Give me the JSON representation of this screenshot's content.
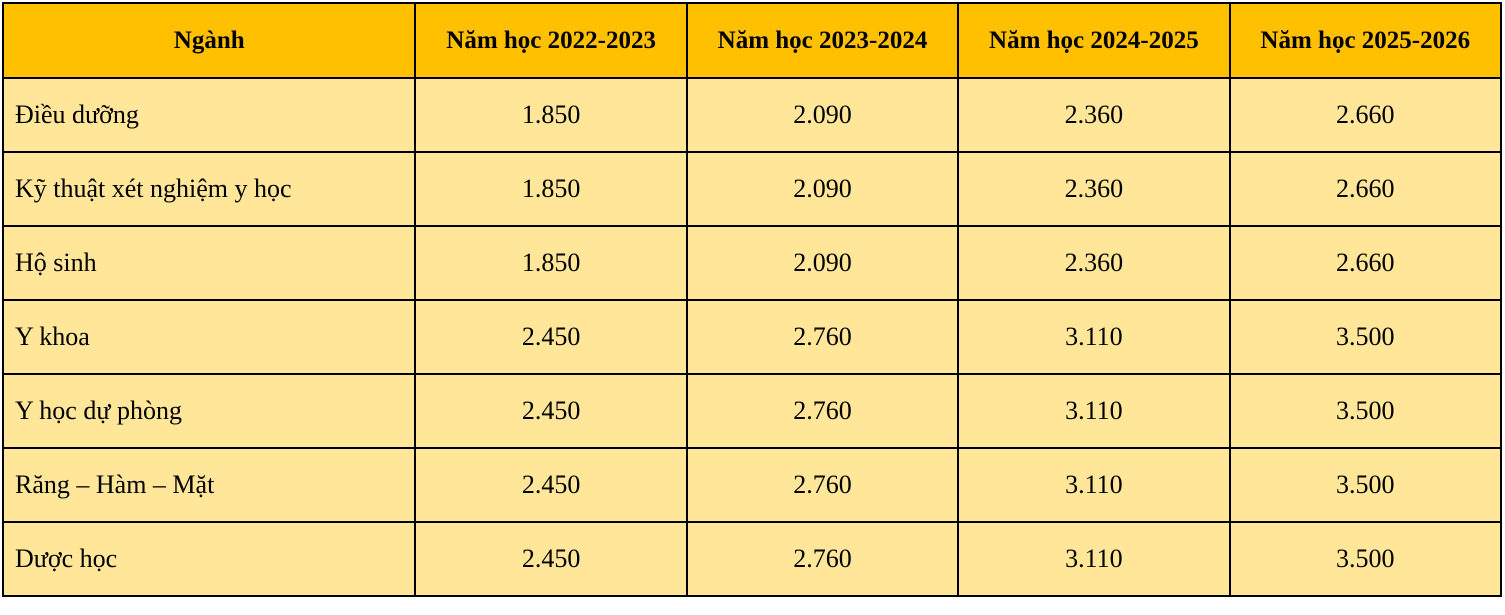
{
  "colors": {
    "header_bg": "#FFC000",
    "body_bg": "#FFE699",
    "border": "#000000"
  },
  "table": {
    "headers": [
      "Ngành",
      "Năm học 2022-2023",
      "Năm học 2023-2024",
      "Năm học 2024-2025",
      "Năm học 2025-2026"
    ],
    "rows": [
      [
        "Điều dưỡng",
        "1.850",
        "2.090",
        "2.360",
        "2.660"
      ],
      [
        "Kỹ thuật xét nghiệm y học",
        "1.850",
        "2.090",
        "2.360",
        "2.660"
      ],
      [
        "Hộ sinh",
        "1.850",
        "2.090",
        "2.360",
        "2.660"
      ],
      [
        "Y khoa",
        "2.450",
        "2.760",
        "3.110",
        "3.500"
      ],
      [
        "Y học dự phòng",
        "2.450",
        "2.760",
        "3.110",
        "3.500"
      ],
      [
        "Răng – Hàm – Mặt",
        "2.450",
        "2.760",
        "3.110",
        "3.500"
      ],
      [
        "Dược học",
        "2.450",
        "2.760",
        "3.110",
        "3.500"
      ]
    ]
  }
}
